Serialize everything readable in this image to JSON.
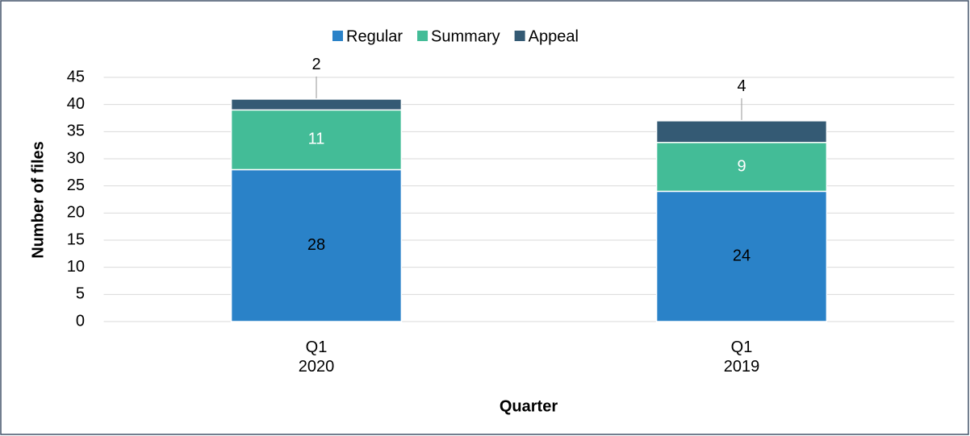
{
  "chart_data": {
    "type": "stacked_bar",
    "x_label": "Quarter",
    "y_label": "Number of files",
    "categories": [
      [
        "Q1",
        "2020"
      ],
      [
        "Q1",
        "2019"
      ]
    ],
    "series": [
      {
        "name": "Regular",
        "color": "#2a82c8",
        "label_color": "#000000",
        "values": [
          28,
          24
        ]
      },
      {
        "name": "Summary",
        "color": "#43bc97",
        "label_color": "#ffffff",
        "values": [
          11,
          9
        ]
      },
      {
        "name": "Appeal",
        "color": "#345a74",
        "label_color": "#000000",
        "values": [
          2,
          4
        ]
      }
    ],
    "ylim": [
      0,
      45
    ],
    "yticks": [
      0,
      5,
      10,
      15,
      20,
      25,
      30,
      35,
      40,
      45
    ],
    "grid": true,
    "legend": "top"
  }
}
